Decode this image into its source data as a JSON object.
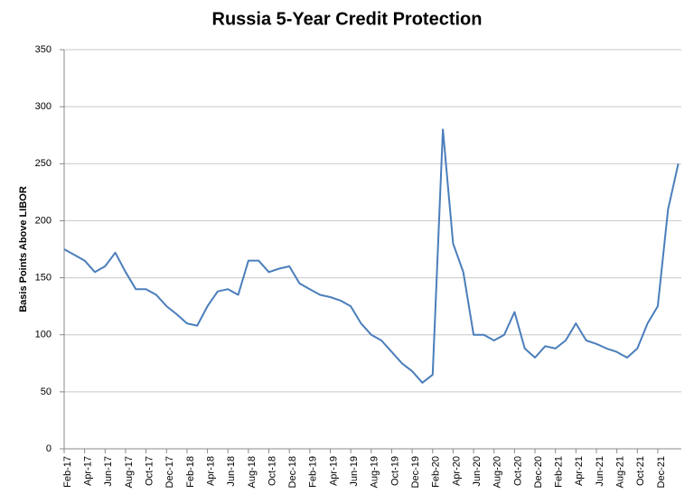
{
  "chart_data": {
    "type": "line",
    "title": "Russia 5-Year Credit Protection",
    "y_label": "Basis Points Above LIBOR",
    "categories": [
      "Feb-17",
      null,
      "Apr-17",
      null,
      "Jun-17",
      null,
      "Aug-17",
      null,
      "Oct-17",
      null,
      "Dec-17",
      null,
      "Feb-18",
      null,
      "Apr-18",
      null,
      "Jun-18",
      null,
      "Aug-18",
      null,
      "Oct-18",
      null,
      "Dec-18",
      null,
      "Feb-19",
      null,
      "Apr-19",
      null,
      "Jun-19",
      null,
      "Aug-19",
      null,
      "Oct-19",
      null,
      "Dec-19",
      null,
      "Feb-20",
      null,
      "Apr-20",
      null,
      "Jun-20",
      null,
      "Aug-20",
      null,
      "Oct-20",
      null,
      "Dec-20",
      null,
      "Feb-21",
      null,
      "Apr-21",
      null,
      "Jun-21",
      null,
      "Aug-21",
      null,
      "Oct-21",
      null,
      "Dec-21",
      null,
      null
    ],
    "series": [
      {
        "color": "#4a7ebb",
        "values": [
          175,
          170,
          165,
          155,
          160,
          172,
          155,
          140,
          140,
          135,
          125,
          118,
          110,
          108,
          125,
          138,
          140,
          135,
          165,
          165,
          155,
          158,
          160,
          145,
          140,
          135,
          133,
          130,
          125,
          110,
          100,
          95,
          85,
          75,
          68,
          58,
          65,
          280,
          180,
          155,
          100,
          100,
          95,
          100,
          120,
          88,
          80,
          90,
          88,
          95,
          110,
          95,
          92,
          88,
          85,
          80,
          88,
          110,
          125,
          210,
          250
        ]
      }
    ],
    "ylim": [
      0,
      350
    ],
    "yticks": [
      0,
      50,
      100,
      150,
      200,
      250,
      300,
      350
    ],
    "grid": true
  }
}
